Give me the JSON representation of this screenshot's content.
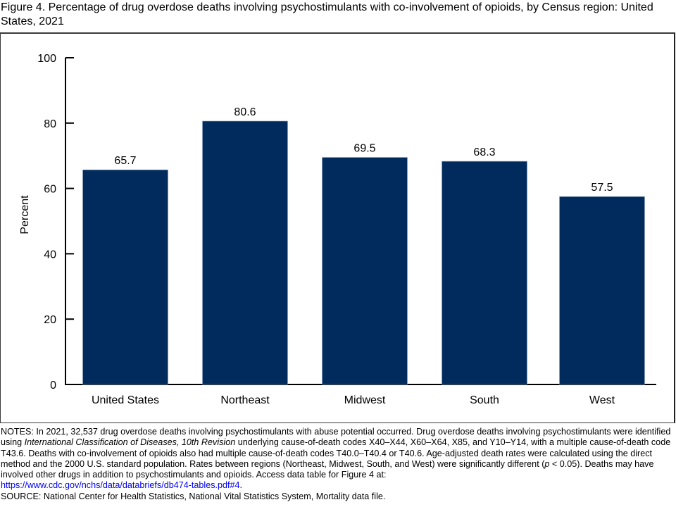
{
  "title": "Figure 4. Percentage of drug overdose deaths involving psychostimulants with co-involvement of opioids, by Census region: United States, 2021",
  "chart_data": {
    "type": "bar",
    "title": "Figure 4. Percentage of drug overdose deaths involving psychostimulants with co-involvement of opioids, by Census region: United States, 2021",
    "categories": [
      "United States",
      "Northeast",
      "Midwest",
      "South",
      "West"
    ],
    "values": [
      65.7,
      80.6,
      69.5,
      68.3,
      57.5
    ],
    "value_labels": [
      "65.7",
      "80.6",
      "69.5",
      "68.3",
      "57.5"
    ],
    "xlabel": "",
    "ylabel": "Percent",
    "ylim": [
      0,
      100
    ],
    "yticks": [
      0,
      20,
      40,
      60,
      80,
      100
    ],
    "ytick_labels": [
      "0",
      "20",
      "40",
      "60",
      "80",
      "100"
    ],
    "grid": false,
    "legend": "none",
    "bar_color": "#002b5c"
  },
  "notes": {
    "part1": "NOTES: In 2021, 32,537 drug overdose deaths involving psychostimulants with abuse potential occurred. Drug overdose deaths involving psychostimulants were identified using ",
    "italic1": "International Classification of Diseases, 10th Revision",
    "part2": " underlying cause-of-death codes X40–X44, X60–X64, X85, and Y10–Y14, with a multiple cause-of-death code T43.6. Deaths with co-involvement of opioids also had multiple cause-of-death codes T40.0–T40.4 or T40.6. Age-adjusted death rates were calculated using the direct method and the 2000 U.S. standard population. Rates between regions (Northeast, Midwest, South, and West) were significantly different (",
    "italic2": "p",
    "part3": " < 0.05). Deaths may have involved other drugs in addition to psychostimulants and opioids. Access data table for Figure 4 at:",
    "link": "https://www.cdc.gov/nchs/data/databriefs/db474-tables.pdf#4",
    "link_suffix": ".",
    "source": "SOURCE: National Center for Health Statistics, National Vital Statistics System, Mortality data file."
  }
}
